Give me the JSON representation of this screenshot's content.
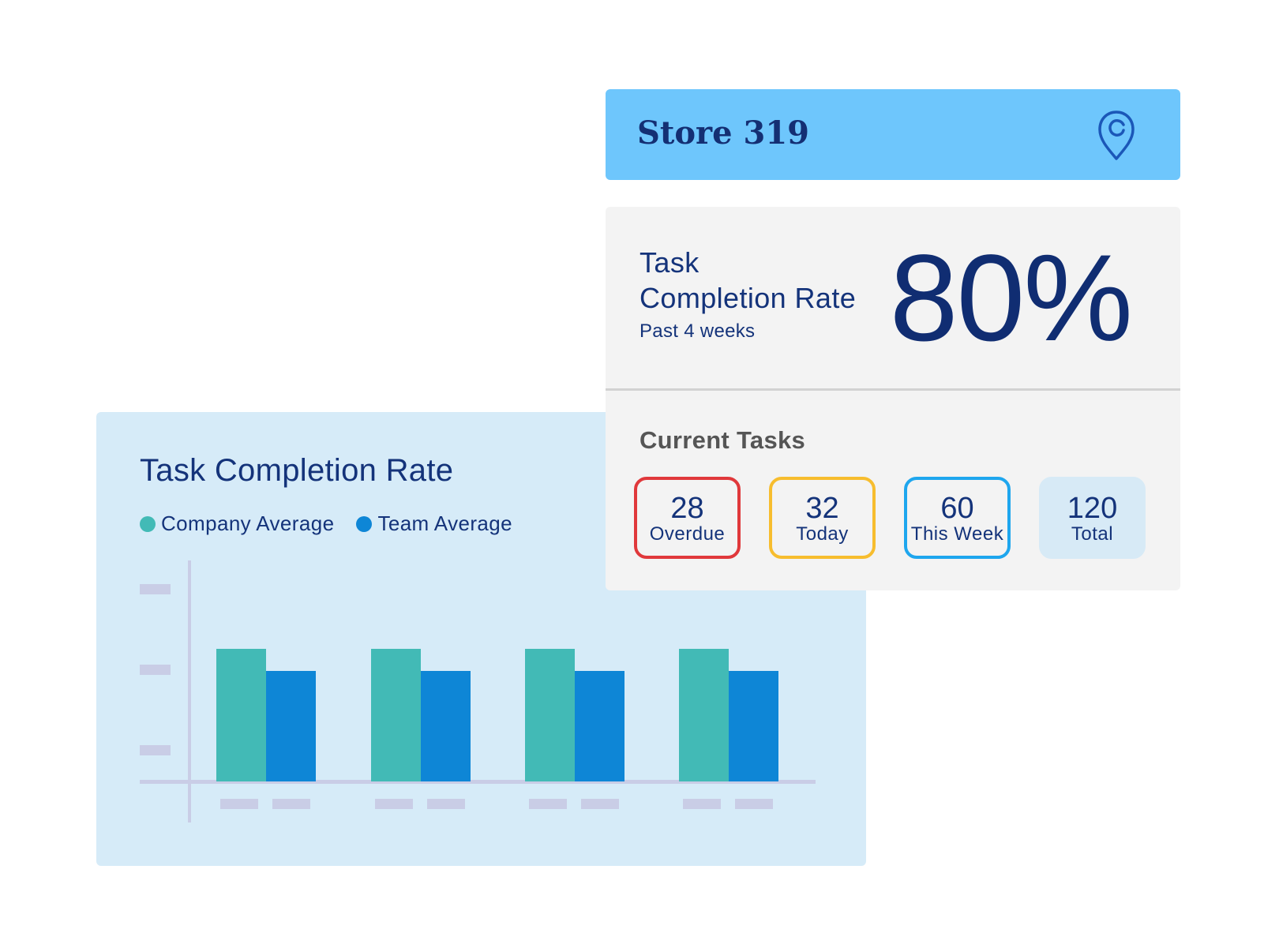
{
  "colors": {
    "company": "#42bab6",
    "team": "#0e86d6",
    "placeholder": "#c9cde6"
  },
  "chart": {
    "title": "Task Completion Rate",
    "legend": [
      {
        "label": "Company Average",
        "color": "#42bab6"
      },
      {
        "label": "Team Average",
        "color": "#0e86d6"
      }
    ]
  },
  "chart_data": {
    "type": "bar",
    "title": "Task Completion Rate",
    "categories": [
      "",
      "",
      "",
      ""
    ],
    "series": [
      {
        "name": "Company Average",
        "values": [
          1.5,
          1.5,
          1.5,
          1.5
        ]
      },
      {
        "name": "Team Average",
        "values": [
          1.25,
          1.25,
          1.25,
          1.25
        ]
      }
    ],
    "ylim": [
      0,
      2.5
    ],
    "legend_position": "top-left",
    "grid": false
  },
  "store": {
    "name": "Store 319",
    "icon": "location-pin-icon"
  },
  "stats": {
    "rate_title_line1": "Task",
    "rate_title_line2": "Completion Rate",
    "period": "Past 4 weeks",
    "rate_value": "80%",
    "rate_fraction": 0.8
  },
  "tasks": {
    "title": "Current Tasks",
    "items": [
      {
        "count": "28",
        "label": "Overdue"
      },
      {
        "count": "32",
        "label": "Today"
      },
      {
        "count": "60",
        "label": "This Week"
      },
      {
        "count": "120",
        "label": "Total"
      }
    ]
  }
}
